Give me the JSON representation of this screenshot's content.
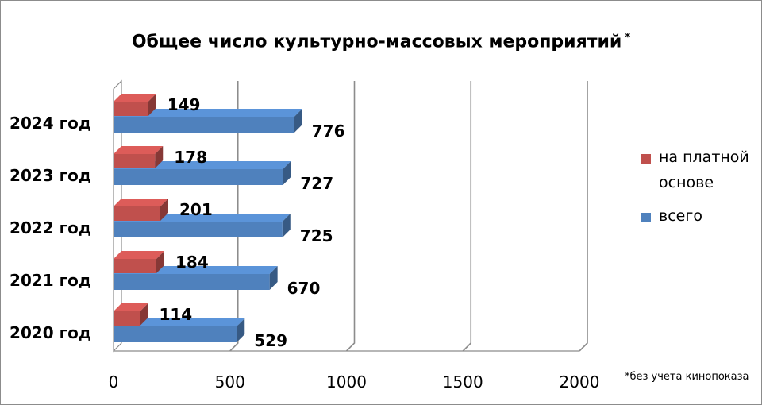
{
  "chart_data": {
    "type": "bar",
    "orientation": "horizontal",
    "title": "Общее число культурно-массовых мероприятий",
    "title_marker": "*",
    "categories": [
      "2024 год",
      "2023 год",
      "2022 год",
      "2021 год",
      "2020 год"
    ],
    "series": [
      {
        "name": "на платной основе",
        "color": "#c0504d",
        "values": [
          149,
          178,
          201,
          184,
          114
        ]
      },
      {
        "name": "всего",
        "color": "#4f81bd",
        "values": [
          776,
          727,
          725,
          670,
          529
        ]
      }
    ],
    "xlim": [
      0,
      2000
    ],
    "x_ticks": [
      "0",
      "500",
      "1000",
      "1500",
      "2000"
    ],
    "grid": true,
    "legend_position": "right",
    "footnote": "*без учета кинопоказа"
  }
}
